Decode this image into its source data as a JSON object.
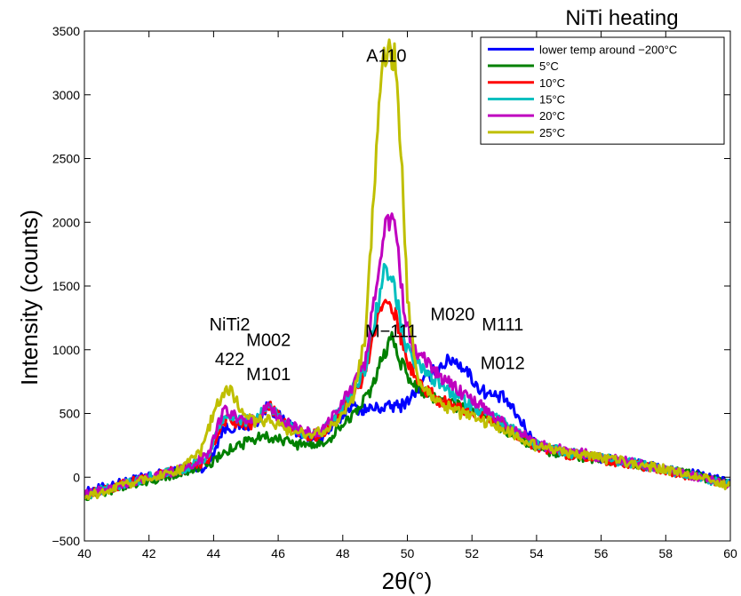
{
  "chart_data": {
    "type": "line",
    "title": "NiTi heating",
    "xlabel": "2θ(°)",
    "ylabel": "Intensity (counts)",
    "xlim": [
      40,
      60
    ],
    "ylim": [
      -500,
      3500
    ],
    "xticks": [
      40,
      42,
      44,
      46,
      48,
      50,
      52,
      54,
      56,
      58,
      60
    ],
    "yticks": [
      -500,
      0,
      500,
      1000,
      1500,
      2000,
      2500,
      3000,
      3500
    ],
    "grid": false,
    "legend_position": "top-right",
    "series": [
      {
        "name": "lower temp around −200°C",
        "color": "#0000ff",
        "x": [
          40,
          41,
          42,
          43,
          43.8,
          44.3,
          44.8,
          45.3,
          45.7,
          46.2,
          46.8,
          47.3,
          47.8,
          48.2,
          48.6,
          49.0,
          49.4,
          49.8,
          50.2,
          50.6,
          51.0,
          51.4,
          51.8,
          52.2,
          52.6,
          53.0,
          53.4,
          54.0,
          55,
          56,
          57,
          58,
          59,
          60
        ],
        "y": [
          -120,
          -50,
          10,
          60,
          80,
          380,
          400,
          420,
          560,
          430,
          320,
          300,
          420,
          560,
          530,
          540,
          550,
          560,
          650,
          780,
          870,
          930,
          850,
          700,
          640,
          620,
          480,
          250,
          180,
          150,
          110,
          60,
          20,
          -40
        ]
      },
      {
        "name": "5°C",
        "color": "#008000",
        "x": [
          40,
          41,
          42,
          43,
          44,
          44.5,
          45,
          45.5,
          46,
          46.5,
          47,
          47.5,
          48,
          48.5,
          48.9,
          49.2,
          49.5,
          49.8,
          50.2,
          50.6,
          51,
          51.5,
          52,
          52.5,
          53,
          54,
          55,
          56,
          57,
          58,
          59,
          60
        ],
        "y": [
          -150,
          -90,
          -30,
          40,
          120,
          220,
          270,
          330,
          300,
          260,
          250,
          280,
          420,
          540,
          680,
          920,
          1100,
          900,
          720,
          650,
          600,
          560,
          520,
          450,
          380,
          230,
          170,
          140,
          100,
          60,
          10,
          -60
        ]
      },
      {
        "name": "10°C",
        "color": "#ff0000",
        "x": [
          40,
          41,
          42,
          43,
          43.8,
          44.3,
          44.8,
          45.3,
          45.7,
          46.2,
          46.8,
          47.3,
          47.8,
          48.3,
          48.7,
          49.0,
          49.3,
          49.6,
          49.9,
          50.2,
          50.6,
          51,
          51.5,
          52,
          52.5,
          53,
          54,
          55,
          56,
          57,
          58,
          59,
          60
        ],
        "y": [
          -140,
          -70,
          0,
          60,
          120,
          450,
          420,
          420,
          560,
          420,
          330,
          330,
          470,
          650,
          800,
          1150,
          1420,
          1300,
          1000,
          800,
          680,
          600,
          560,
          520,
          480,
          400,
          240,
          180,
          140,
          100,
          50,
          0,
          -60
        ]
      },
      {
        "name": "15°C",
        "color": "#00bfbf",
        "x": [
          40,
          41,
          42,
          43,
          43.8,
          44.3,
          44.8,
          45.3,
          45.7,
          46.2,
          46.8,
          47.3,
          47.8,
          48.3,
          48.7,
          49.0,
          49.3,
          49.6,
          49.9,
          50.2,
          50.6,
          51,
          51.5,
          52,
          52.5,
          53,
          54,
          55,
          56,
          57,
          58,
          59,
          60
        ],
        "y": [
          -140,
          -70,
          0,
          60,
          150,
          480,
          440,
          440,
          560,
          430,
          340,
          340,
          480,
          680,
          860,
          1250,
          1650,
          1500,
          1050,
          900,
          820,
          720,
          650,
          560,
          500,
          420,
          250,
          190,
          150,
          110,
          60,
          0,
          -60
        ]
      },
      {
        "name": "20°C",
        "color": "#bf00bf",
        "x": [
          40,
          41,
          42,
          43,
          43.8,
          44.3,
          44.8,
          45.3,
          45.7,
          46.2,
          46.8,
          47.3,
          47.8,
          48.3,
          48.7,
          49.0,
          49.3,
          49.6,
          49.9,
          50.2,
          50.6,
          51,
          51.5,
          52,
          52.5,
          53,
          54,
          55,
          56,
          57,
          58,
          59,
          60
        ],
        "y": [
          -140,
          -70,
          0,
          60,
          170,
          520,
          460,
          450,
          560,
          430,
          350,
          350,
          500,
          720,
          900,
          1450,
          1950,
          2050,
          1300,
          1000,
          900,
          800,
          700,
          600,
          520,
          430,
          260,
          200,
          160,
          110,
          60,
          0,
          -60
        ]
      },
      {
        "name": "25°C",
        "color": "#bfbf00",
        "x": [
          40,
          41,
          42,
          43,
          43.6,
          44.0,
          44.4,
          44.8,
          45.2,
          45.7,
          46.2,
          46.8,
          47.3,
          47.8,
          48.3,
          48.7,
          49.0,
          49.2,
          49.4,
          49.6,
          49.8,
          50.0,
          50.3,
          50.7,
          51,
          51.5,
          52,
          52.5,
          53,
          54,
          55,
          56,
          57,
          58,
          59,
          60
        ],
        "y": [
          -160,
          -80,
          0,
          60,
          200,
          500,
          720,
          560,
          440,
          450,
          380,
          340,
          350,
          450,
          600,
          1100,
          2400,
          3250,
          3330,
          3300,
          2600,
          1400,
          780,
          640,
          580,
          520,
          470,
          430,
          380,
          240,
          190,
          150,
          110,
          60,
          0,
          -70
        ]
      }
    ],
    "annotations": [
      {
        "text": "A110",
        "x": 49.35,
        "y": 3260
      },
      {
        "text": "NiTi2",
        "x": 44.5,
        "y": 1150
      },
      {
        "text": "422",
        "x": 44.5,
        "y": 880
      },
      {
        "text": "M002",
        "x": 45.7,
        "y": 1030
      },
      {
        "text": "M101",
        "x": 45.7,
        "y": 760
      },
      {
        "text": "M−111",
        "x": 49.5,
        "y": 1100
      },
      {
        "text": "M020",
        "x": 51.4,
        "y": 1230
      },
      {
        "text": "M111",
        "x": 52.95,
        "y": 1150
      },
      {
        "text": "M012",
        "x": 52.95,
        "y": 850
      }
    ]
  }
}
